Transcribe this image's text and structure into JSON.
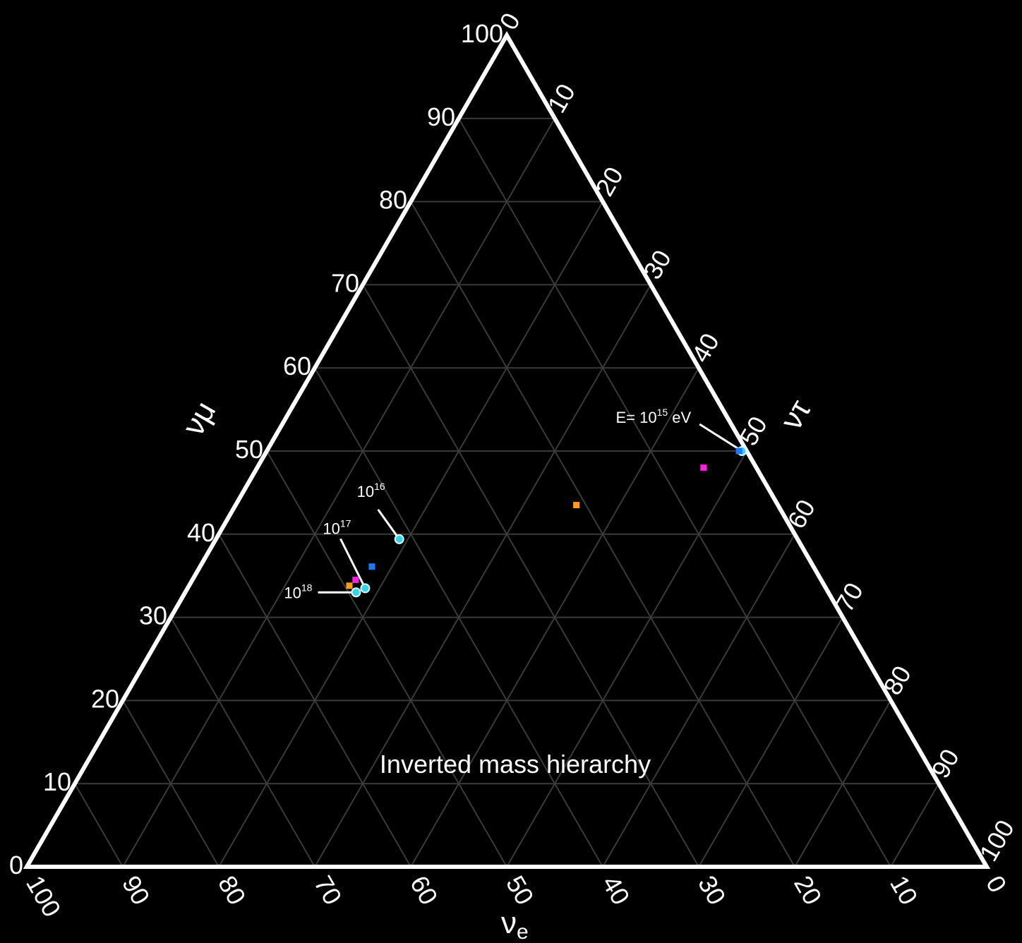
{
  "chart_data": {
    "type": "scatter",
    "subtype": "ternary",
    "background": "#000000",
    "axes": {
      "bottom": {
        "title_base": "ν",
        "title_sub": "e",
        "tick_labels": [
          "100",
          "90",
          "80",
          "70",
          "60",
          "50",
          "40",
          "30",
          "20",
          "10",
          "0"
        ]
      },
      "left": {
        "title": "νμ",
        "tick_labels": [
          "0",
          "10",
          "20",
          "30",
          "40",
          "50",
          "60",
          "70",
          "80",
          "90",
          "100"
        ]
      },
      "right": {
        "title": "ντ",
        "tick_labels": [
          "0",
          "10",
          "20",
          "30",
          "40",
          "50",
          "60",
          "70",
          "80",
          "90",
          "100"
        ]
      },
      "range": [
        0,
        100
      ],
      "grid": true,
      "grid_step": 10
    },
    "annotation_text": "Inverted mass hierarchy",
    "energy_labels": [
      {
        "base": "E= 10",
        "sup": "15",
        "suffix": " eV",
        "point": {
          "nue": 0.5,
          "numu": 50.0,
          "nutau": 49.5
        }
      },
      {
        "base": "10",
        "sup": "16",
        "suffix": "",
        "point": {
          "nue": 41.5,
          "numu": 39.4,
          "nutau": 19.1
        }
      },
      {
        "base": "10",
        "sup": "17",
        "suffix": "",
        "point": {
          "nue": 48.0,
          "numu": 33.5,
          "nutau": 18.5
        }
      },
      {
        "base": "10",
        "sup": "18",
        "suffix": "",
        "point": {
          "nue": 49.2,
          "numu": 33.0,
          "nutau": 17.8
        }
      }
    ],
    "series": [
      {
        "marker": "circle",
        "color": "#35d4e6",
        "points": [
          {
            "nue": 0.5,
            "numu": 50.0,
            "nutau": 49.5
          },
          {
            "nue": 41.5,
            "numu": 39.4,
            "nutau": 19.1
          },
          {
            "nue": 48.0,
            "numu": 33.5,
            "nutau": 18.5
          },
          {
            "nue": 49.2,
            "numu": 33.0,
            "nutau": 17.8
          }
        ]
      },
      {
        "marker": "square",
        "color": "#1e78ff",
        "points": [
          {
            "nue": 0.8,
            "numu": 50.0,
            "nutau": 49.2
          },
          {
            "nue": 46.0,
            "numu": 36.1,
            "nutau": 17.9
          }
        ]
      },
      {
        "marker": "square",
        "color": "#ff1fe0",
        "points": [
          {
            "nue": 5.5,
            "numu": 48.0,
            "nutau": 46.5
          },
          {
            "nue": 48.5,
            "numu": 34.5,
            "nutau": 17.0
          }
        ]
      },
      {
        "marker": "square",
        "color": "#ff9a1a",
        "points": [
          {
            "nue": 21.0,
            "numu": 43.5,
            "nutau": 35.5
          },
          {
            "nue": 49.5,
            "numu": 33.8,
            "nutau": 16.7
          }
        ]
      }
    ]
  }
}
